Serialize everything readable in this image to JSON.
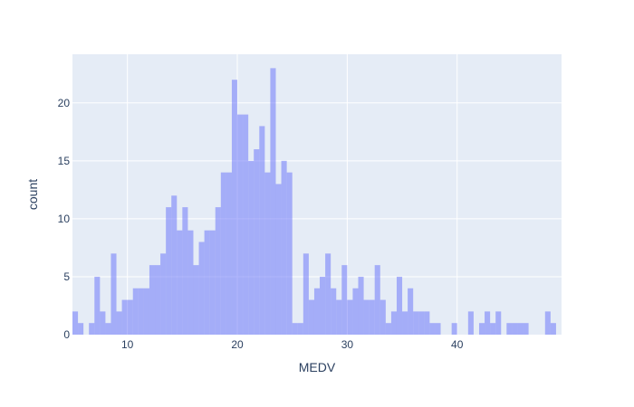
{
  "colors": {
    "plot_background": "#E5ECF6",
    "grid": "#ffffff",
    "bar_fill": "#636EFA",
    "text": "#2a3f5f"
  },
  "chart_data": {
    "type": "bar",
    "subtype": "histogram",
    "xlabel": "MEDV",
    "ylabel": "count",
    "xlim": [
      5,
      49.5
    ],
    "ylim": [
      0,
      24.2
    ],
    "bin_width": 0.5,
    "x_ticks": [
      10,
      20,
      30,
      40
    ],
    "y_ticks": [
      0,
      5,
      10,
      15,
      20
    ],
    "grid": true,
    "bar_opacity": 0.5,
    "bins": [
      {
        "x0": 5.0,
        "count": 2
      },
      {
        "x0": 5.5,
        "count": 1
      },
      {
        "x0": 6.0,
        "count": 0
      },
      {
        "x0": 6.5,
        "count": 1
      },
      {
        "x0": 7.0,
        "count": 5
      },
      {
        "x0": 7.5,
        "count": 2
      },
      {
        "x0": 8.0,
        "count": 1
      },
      {
        "x0": 8.5,
        "count": 7
      },
      {
        "x0": 9.0,
        "count": 2
      },
      {
        "x0": 9.5,
        "count": 3
      },
      {
        "x0": 10.0,
        "count": 3
      },
      {
        "x0": 10.5,
        "count": 4
      },
      {
        "x0": 11.0,
        "count": 4
      },
      {
        "x0": 11.5,
        "count": 4
      },
      {
        "x0": 12.0,
        "count": 6
      },
      {
        "x0": 12.5,
        "count": 6
      },
      {
        "x0": 13.0,
        "count": 7
      },
      {
        "x0": 13.5,
        "count": 11
      },
      {
        "x0": 14.0,
        "count": 12
      },
      {
        "x0": 14.5,
        "count": 9
      },
      {
        "x0": 15.0,
        "count": 11
      },
      {
        "x0": 15.5,
        "count": 9
      },
      {
        "x0": 16.0,
        "count": 6
      },
      {
        "x0": 16.5,
        "count": 8
      },
      {
        "x0": 17.0,
        "count": 9
      },
      {
        "x0": 17.5,
        "count": 9
      },
      {
        "x0": 18.0,
        "count": 11
      },
      {
        "x0": 18.5,
        "count": 14
      },
      {
        "x0": 19.0,
        "count": 14
      },
      {
        "x0": 19.5,
        "count": 22
      },
      {
        "x0": 20.0,
        "count": 19
      },
      {
        "x0": 20.5,
        "count": 19
      },
      {
        "x0": 21.0,
        "count": 15
      },
      {
        "x0": 21.5,
        "count": 16
      },
      {
        "x0": 22.0,
        "count": 18
      },
      {
        "x0": 22.5,
        "count": 14
      },
      {
        "x0": 23.0,
        "count": 23
      },
      {
        "x0": 23.5,
        "count": 13
      },
      {
        "x0": 24.0,
        "count": 15
      },
      {
        "x0": 24.5,
        "count": 14
      },
      {
        "x0": 25.0,
        "count": 1
      },
      {
        "x0": 25.5,
        "count": 1
      },
      {
        "x0": 26.0,
        "count": 7
      },
      {
        "x0": 26.5,
        "count": 3
      },
      {
        "x0": 27.0,
        "count": 4
      },
      {
        "x0": 27.5,
        "count": 5
      },
      {
        "x0": 28.0,
        "count": 7
      },
      {
        "x0": 28.5,
        "count": 4
      },
      {
        "x0": 29.0,
        "count": 3
      },
      {
        "x0": 29.5,
        "count": 6
      },
      {
        "x0": 30.0,
        "count": 3
      },
      {
        "x0": 30.5,
        "count": 4
      },
      {
        "x0": 31.0,
        "count": 5
      },
      {
        "x0": 31.5,
        "count": 3
      },
      {
        "x0": 32.0,
        "count": 3
      },
      {
        "x0": 32.5,
        "count": 6
      },
      {
        "x0": 33.0,
        "count": 3
      },
      {
        "x0": 33.5,
        "count": 1
      },
      {
        "x0": 34.0,
        "count": 2
      },
      {
        "x0": 34.5,
        "count": 5
      },
      {
        "x0": 35.0,
        "count": 2
      },
      {
        "x0": 35.5,
        "count": 4
      },
      {
        "x0": 36.0,
        "count": 2
      },
      {
        "x0": 36.5,
        "count": 2
      },
      {
        "x0": 37.0,
        "count": 2
      },
      {
        "x0": 37.5,
        "count": 1
      },
      {
        "x0": 38.0,
        "count": 1
      },
      {
        "x0": 38.5,
        "count": 0
      },
      {
        "x0": 39.0,
        "count": 0
      },
      {
        "x0": 39.5,
        "count": 1
      },
      {
        "x0": 40.0,
        "count": 0
      },
      {
        "x0": 40.5,
        "count": 0
      },
      {
        "x0": 41.0,
        "count": 2
      },
      {
        "x0": 41.5,
        "count": 0
      },
      {
        "x0": 42.0,
        "count": 1
      },
      {
        "x0": 42.5,
        "count": 2
      },
      {
        "x0": 43.0,
        "count": 1
      },
      {
        "x0": 43.5,
        "count": 2
      },
      {
        "x0": 44.0,
        "count": 0
      },
      {
        "x0": 44.5,
        "count": 1
      },
      {
        "x0": 45.0,
        "count": 1
      },
      {
        "x0": 45.5,
        "count": 1
      },
      {
        "x0": 46.0,
        "count": 1
      },
      {
        "x0": 46.5,
        "count": 0
      },
      {
        "x0": 47.0,
        "count": 0
      },
      {
        "x0": 47.5,
        "count": 0
      },
      {
        "x0": 48.0,
        "count": 2
      },
      {
        "x0": 48.5,
        "count": 1
      }
    ]
  }
}
